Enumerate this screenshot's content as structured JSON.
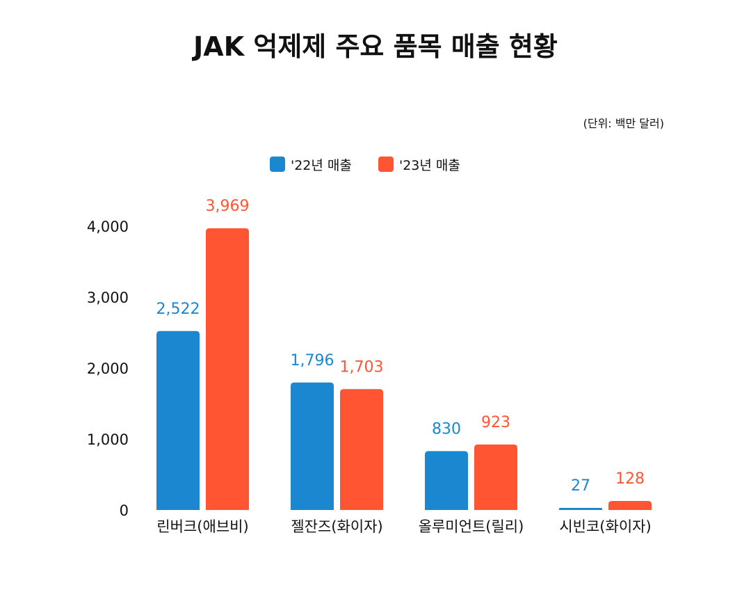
{
  "chart_data": {
    "type": "bar",
    "title": "JAK 억제제 주요 품목 매출 현황",
    "unit_note": "(단위: 백만 달러)",
    "categories": [
      "린버크(애브비)",
      "젤잔즈(화이자)",
      "올루미언트(릴리)",
      "시빈코(화이자)"
    ],
    "series": [
      {
        "name": "'22년 매출",
        "values": [
          2522,
          1796,
          830,
          27
        ],
        "labels": [
          "2,522",
          "1,796",
          "830",
          "27"
        ],
        "color": "#1a87d0"
      },
      {
        "name": "'23년 매출",
        "values": [
          3969,
          1703,
          923,
          128
        ],
        "labels": [
          "3,969",
          "1,703",
          "923",
          "128"
        ],
        "color": "#ff5533"
      }
    ],
    "yticks": [
      0,
      1000,
      2000,
      3000,
      4000
    ],
    "ytick_labels": [
      "0",
      "1,000",
      "2,000",
      "3,000",
      "4,000"
    ],
    "ylim": [
      0,
      4000
    ],
    "grid": false,
    "legend_position": "top-center",
    "xlabel": "",
    "ylabel": ""
  }
}
